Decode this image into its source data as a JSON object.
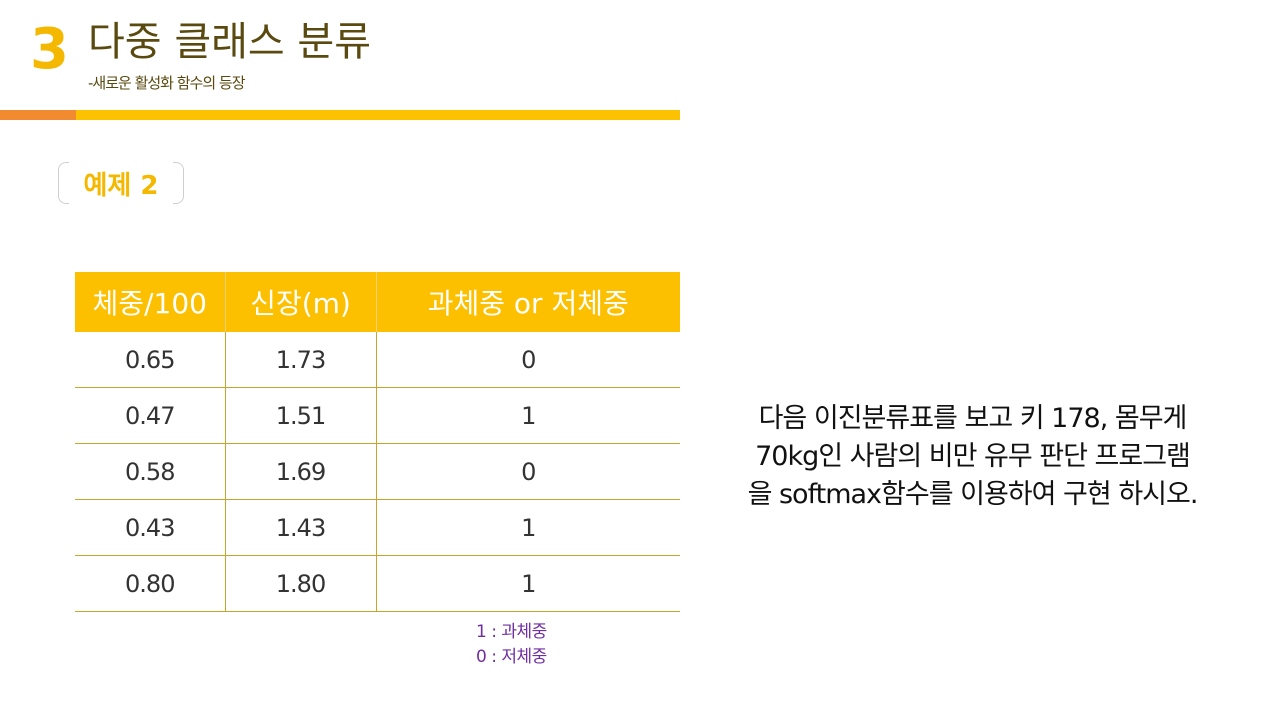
{
  "header": {
    "section_number": "3",
    "title": "다중 클래스 분류",
    "subtitle": "-새로운 활성화 함수의 등장"
  },
  "example": {
    "label": "예제 2"
  },
  "table": {
    "headers": [
      "체중/100",
      "신장(m)",
      "과체중 or 저체중"
    ],
    "rows": [
      [
        "0.65",
        "1.73",
        "0"
      ],
      [
        "0.47",
        "1.51",
        "1"
      ],
      [
        "0.58",
        "1.69",
        "0"
      ],
      [
        "0.43",
        "1.43",
        "1"
      ],
      [
        "0.80",
        "1.80",
        "1"
      ]
    ]
  },
  "legend": [
    "1 : 과체중",
    "0 : 저체중"
  ],
  "problem": {
    "lines": [
      "다음 이진분류표를 보고 키 178, 몸무게",
      "70kg인 사람의 비만 유무 판단 프로그램",
      "을 softmax함수를 이용하여 구현 하시오."
    ]
  },
  "colors": {
    "accent_yellow": "#fcc000",
    "accent_orange": "#f28a30",
    "title_brown": "#5a4a10",
    "legend_purple": "#7030a0"
  }
}
